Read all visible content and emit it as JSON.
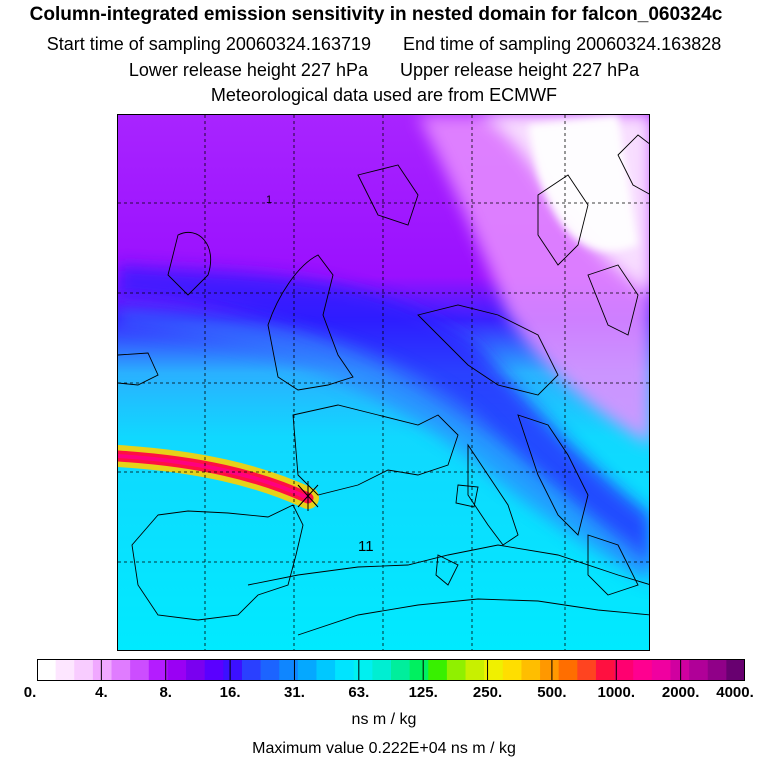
{
  "header": {
    "title": "Column-integrated emission sensitivity in nested domain for falcon_060324c",
    "start_label": "Start time of sampling 20060324.163719",
    "end_label": "End time of sampling 20060324.163828",
    "lower_label": "Lower release height  227 hPa",
    "upper_label": "Upper release height  227 hPa",
    "met_label": "Meteorological data used are from ECMWF"
  },
  "map": {
    "contour_labels": [
      "1",
      "11"
    ],
    "marker": "release point"
  },
  "colorbar": {
    "unit": "ns m / kg",
    "tick_labels": [
      "0.",
      "4.",
      "8.",
      "16.",
      "31.",
      "63.",
      "125.",
      "250.",
      "500.",
      "1000.",
      "2000.",
      "4000."
    ],
    "colors": [
      "#ffffff",
      "#fde6ff",
      "#f8ccff",
      "#f0a8ff",
      "#e07cff",
      "#cc4dff",
      "#b41cff",
      "#9a00f4",
      "#7a00f0",
      "#5a00ff",
      "#3c10ff",
      "#2a40ff",
      "#1c64ff",
      "#0f86ff",
      "#05a8ff",
      "#00c8ff",
      "#00e4ff",
      "#00f0f0",
      "#00eed2",
      "#00ee9c",
      "#00f060",
      "#38f000",
      "#90f000",
      "#c8f000",
      "#f0f000",
      "#ffde00",
      "#ffbe00",
      "#ff9800",
      "#ff6e00",
      "#ff4420",
      "#ff1040",
      "#ff0070",
      "#ff0090",
      "#f000a0",
      "#d000a0",
      "#b00098",
      "#900088",
      "#680070"
    ]
  },
  "footer": {
    "max_value": "Maximum value  0.222E+04 ns m / kg"
  }
}
